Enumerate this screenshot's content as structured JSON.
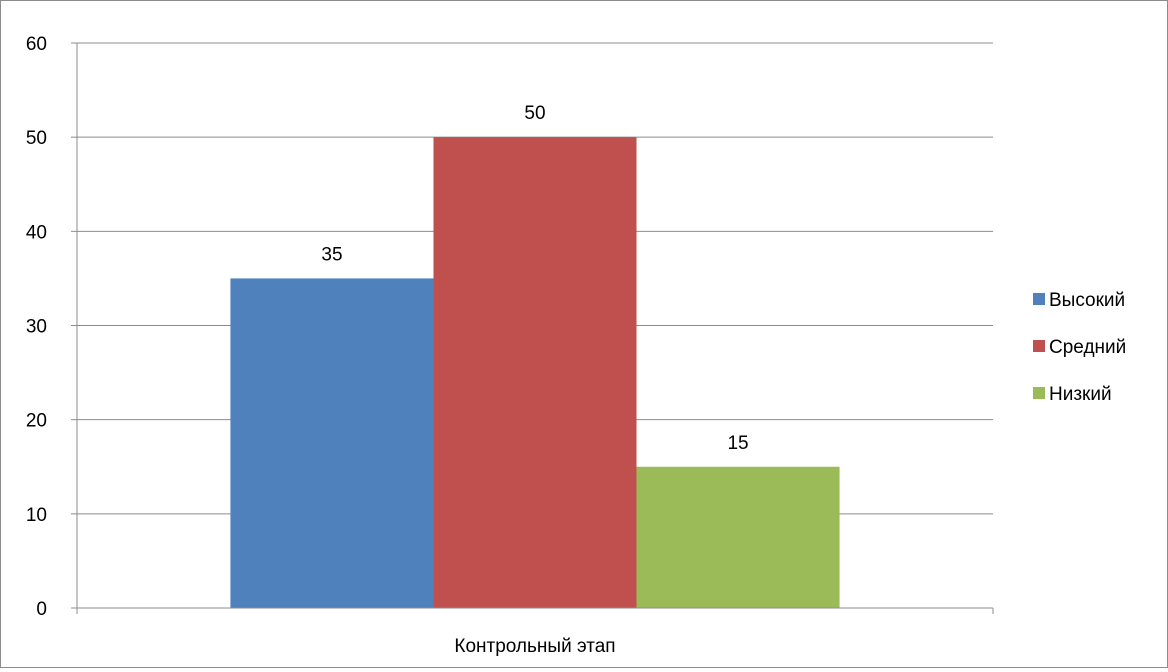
{
  "chart_data": {
    "type": "bar",
    "categories": [
      "Контрольный этап"
    ],
    "series": [
      {
        "name": "Высокий",
        "values": [
          35
        ],
        "color": "#4F81BD"
      },
      {
        "name": "Средний",
        "values": [
          50
        ],
        "color": "#C0504D"
      },
      {
        "name": "Низкий",
        "values": [
          15
        ],
        "color": "#9BBB59"
      }
    ],
    "ylim": [
      0,
      60
    ],
    "yticks": [
      0,
      10,
      20,
      30,
      40,
      50,
      60
    ],
    "grid": true,
    "legend_position": "right",
    "data_labels": true
  }
}
